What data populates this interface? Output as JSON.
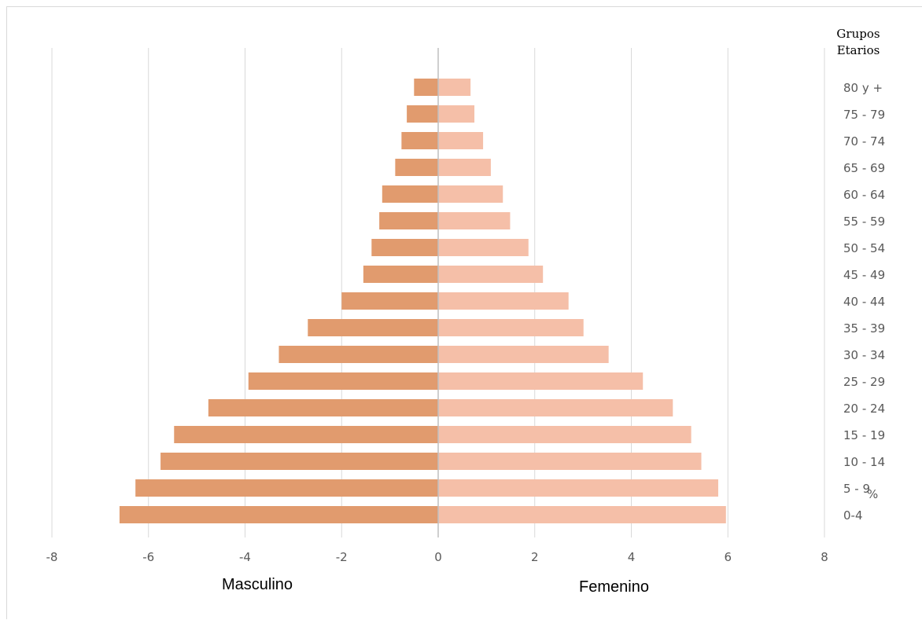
{
  "chart_data": {
    "type": "bar",
    "orientation": "horizontal",
    "layout": "population-pyramid",
    "title": "",
    "categories_label": "Grupos Etarios",
    "categories": [
      "0-4",
      "5 - 9",
      "10 - 14",
      "15 - 19",
      "20 - 24",
      "25 - 29",
      "30 - 34",
      "35 - 39",
      "40 - 44",
      "45 - 49",
      "50 - 54",
      "55 - 59",
      "60 - 64",
      "65 - 69",
      "70 - 74",
      "75 - 79",
      "80 y +"
    ],
    "series": [
      {
        "name": "Masculino",
        "color": "#e19b6e",
        "values": [
          -6.6,
          -6.27,
          -5.75,
          -5.47,
          -4.76,
          -3.93,
          -3.3,
          -2.7,
          -2.0,
          -1.55,
          -1.38,
          -1.22,
          -1.16,
          -0.89,
          -0.76,
          -0.65,
          -0.5
        ]
      },
      {
        "name": "Femenino",
        "color": "#f5bfa8",
        "values": [
          5.96,
          5.8,
          5.45,
          5.24,
          4.86,
          4.24,
          3.53,
          3.01,
          2.7,
          2.17,
          1.87,
          1.49,
          1.34,
          1.09,
          0.93,
          0.75,
          0.67
        ]
      }
    ],
    "xlim": [
      -8,
      8
    ],
    "x_ticks": [
      "-8",
      "-6",
      "-4",
      "-2",
      "0",
      "2",
      "4",
      "6",
      "8"
    ],
    "xlabel": "%",
    "grid": "vertical",
    "gridline_color": "#d9d9d9",
    "axis_color": "#bfbfbf"
  }
}
